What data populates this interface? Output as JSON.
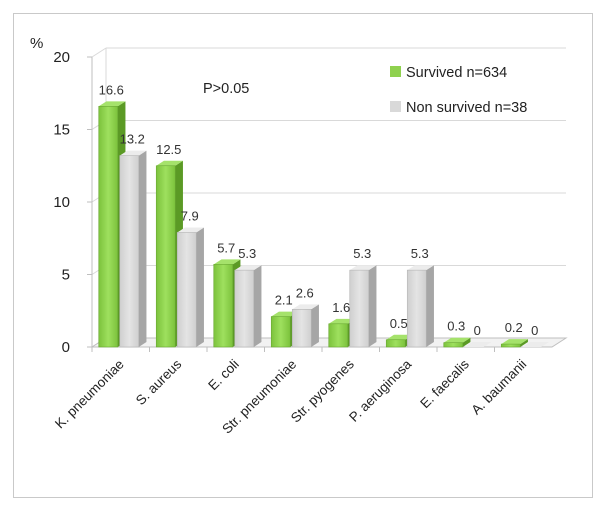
{
  "chart_data": {
    "type": "bar",
    "title": "",
    "unit_label": "%",
    "annotation": "P>0.05",
    "ylim": [
      0,
      20
    ],
    "yticks": [
      0,
      5,
      10,
      15,
      20
    ],
    "grid": true,
    "legend_position": "top-right",
    "categories": [
      "K. pneumoniae",
      "S. aureus",
      "E. coli",
      "Str. pneumoniae",
      "Str. pyogenes",
      "P. aeruginosa",
      "E. faecalis",
      "A. baumanii"
    ],
    "series": [
      {
        "name": "Survived n=634",
        "color": "#8fd14f",
        "values": [
          16.6,
          12.5,
          5.7,
          2.1,
          1.6,
          0.5,
          0.3,
          0.2
        ]
      },
      {
        "name": "Non survived n=38",
        "color": "#d9d9d9",
        "values": [
          13.2,
          7.9,
          5.3,
          2.6,
          5.3,
          5.3,
          0,
          0
        ]
      }
    ]
  }
}
